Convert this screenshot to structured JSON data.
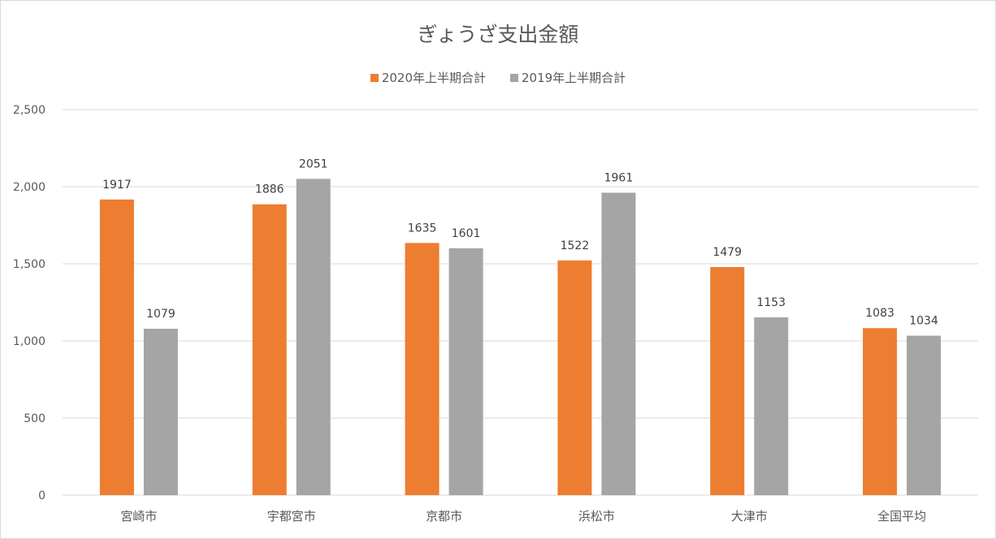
{
  "chart_data": {
    "type": "bar",
    "title": "ぎょうざ支出金額",
    "categories": [
      "宮崎市",
      "宇都宮市",
      "京都市",
      "浜松市",
      "大津市",
      "全国平均"
    ],
    "series": [
      {
        "name": "2020年上半期合計",
        "color": "#ed7d31",
        "values": [
          1917,
          1886,
          1635,
          1522,
          1479,
          1083
        ]
      },
      {
        "name": "2019年上半期合計",
        "color": "#a5a5a5",
        "values": [
          1079,
          2051,
          1601,
          1961,
          1153,
          1034
        ]
      }
    ],
    "ylim": [
      0,
      2500
    ],
    "yticks": [
      0,
      500,
      1000,
      1500,
      2000,
      2500
    ],
    "ytick_labels": [
      "0",
      "500",
      "1,000",
      "1,500",
      "2,000",
      "2,500"
    ],
    "grid": true,
    "legend_position": "top",
    "data_labels": true
  }
}
